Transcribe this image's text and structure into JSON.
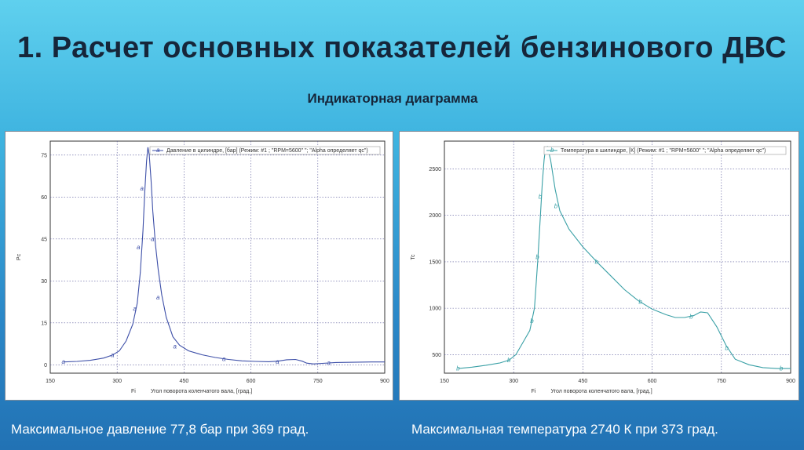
{
  "slide": {
    "title": "1. Расчет основных показателей бензинового ДВС",
    "subtitle": "Индикаторная диаграмма",
    "caption_left": "Максимальное давление 77,8 бар при 369 град.",
    "caption_right": "Максимальная температура 2740 К при 373 град."
  },
  "colors": {
    "pressure_line": "#3d4fa8",
    "temperature_line": "#3aa0a6",
    "grid": "#5a5a9a"
  },
  "chart_data": [
    {
      "type": "line",
      "ylabel": "Pc",
      "xlabel_short": "Fi",
      "xlabel": "Угол поворота коленчатого вала, [град.]",
      "xlim": [
        150,
        900
      ],
      "ylim": [
        -3,
        80
      ],
      "xticks": [
        150,
        300,
        450,
        600,
        750,
        900
      ],
      "yticks": [
        0,
        15,
        30,
        45,
        60,
        75
      ],
      "grid": true,
      "legend_position": "top-right",
      "series": [
        {
          "name": "Давление в цилиндре, [бар] (Режим: #1 ; \"RPM=5600\"          \"; \"Alpha определяет qc\")",
          "marker": "a",
          "x": [
            180,
            210,
            240,
            270,
            290,
            305,
            320,
            335,
            345,
            352,
            358,
            362,
            366,
            369,
            372,
            376,
            380,
            386,
            392,
            400,
            410,
            425,
            440,
            460,
            490,
            520,
            550,
            580,
            610,
            640,
            660,
            680,
            700,
            715,
            725,
            740,
            760,
            790,
            830,
            870,
            900
          ],
          "y": [
            1.0,
            1.2,
            1.6,
            2.4,
            3.5,
            5.0,
            8.5,
            14.5,
            22.0,
            33.0,
            48.0,
            62.0,
            73.0,
            77.8,
            75.0,
            66.0,
            55.0,
            43.0,
            34.0,
            25.0,
            17.0,
            10.0,
            7.0,
            5.0,
            3.6,
            2.6,
            1.9,
            1.4,
            1.2,
            1.1,
            1.3,
            1.8,
            1.9,
            1.3,
            0.6,
            0.3,
            0.5,
            0.8,
            0.9,
            1.0,
            1.0
          ],
          "marker_points": [
            {
              "x": 180,
              "y": 1.0
            },
            {
              "x": 290,
              "y": 3.5
            },
            {
              "x": 340,
              "y": 20.0
            },
            {
              "x": 348,
              "y": 42.0
            },
            {
              "x": 356,
              "y": 63.0
            },
            {
              "x": 380,
              "y": 45.0
            },
            {
              "x": 392,
              "y": 24.0
            },
            {
              "x": 430,
              "y": 6.5
            },
            {
              "x": 540,
              "y": 2.0
            },
            {
              "x": 660,
              "y": 1.1
            },
            {
              "x": 775,
              "y": 0.6
            }
          ]
        }
      ]
    },
    {
      "type": "line",
      "ylabel": "Tc",
      "xlabel_short": "Fi",
      "xlabel": "Угол поворота коленчатого вала, [град.]",
      "xlim": [
        150,
        900
      ],
      "ylim": [
        300,
        2800
      ],
      "xticks": [
        150,
        300,
        450,
        600,
        750,
        900
      ],
      "yticks": [
        500,
        1000,
        1500,
        2000,
        2500
      ],
      "grid": true,
      "legend_position": "top-right",
      "series": [
        {
          "name": "Температура в шилиндре, [К] (Режим: #1 ; \"RPM=5600\"          \"; \"Alpha определяет qc\")",
          "marker": "b",
          "x": [
            180,
            210,
            240,
            270,
            290,
            305,
            320,
            335,
            345,
            352,
            358,
            362,
            366,
            369,
            373,
            380,
            390,
            400,
            420,
            450,
            480,
            510,
            540,
            570,
            600,
            630,
            650,
            670,
            690,
            705,
            720,
            740,
            760,
            780,
            810,
            840,
            870,
            900
          ],
          "y": [
            350,
            365,
            385,
            410,
            440,
            500,
            630,
            760,
            1000,
            1500,
            2000,
            2350,
            2600,
            2720,
            2740,
            2600,
            2280,
            2050,
            1850,
            1660,
            1500,
            1350,
            1200,
            1080,
            990,
            930,
            900,
            900,
            920,
            960,
            950,
            800,
            600,
            450,
            390,
            360,
            350,
            350
          ],
          "marker_points": [
            {
              "x": 180,
              "y": 350
            },
            {
              "x": 290,
              "y": 440
            },
            {
              "x": 340,
              "y": 860
            },
            {
              "x": 352,
              "y": 1550
            },
            {
              "x": 358,
              "y": 2200
            },
            {
              "x": 392,
              "y": 2100
            },
            {
              "x": 480,
              "y": 1500
            },
            {
              "x": 575,
              "y": 1070
            },
            {
              "x": 685,
              "y": 910
            },
            {
              "x": 762,
              "y": 570
            },
            {
              "x": 880,
              "y": 350
            }
          ]
        }
      ]
    }
  ]
}
